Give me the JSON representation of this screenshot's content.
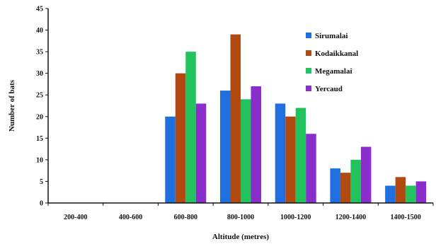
{
  "chart_data": {
    "type": "bar",
    "title": "",
    "xlabel": "Altitude (metres)",
    "ylabel": "Number of bats",
    "ylim": [
      0,
      45
    ],
    "yticks": [
      0,
      5,
      10,
      15,
      20,
      25,
      30,
      35,
      40,
      45
    ],
    "categories": [
      "200-400",
      "400-600",
      "600-800",
      "800-1000",
      "1000-1200",
      "1200-1400",
      "1400-1500"
    ],
    "series": [
      {
        "name": "Sirumalai",
        "color": "#1f6fe0",
        "values": [
          0,
          0,
          20,
          26,
          23,
          8,
          4
        ]
      },
      {
        "name": "Kodaikkanal",
        "color": "#b04a10",
        "values": [
          0,
          0,
          30,
          39,
          20,
          7,
          6
        ]
      },
      {
        "name": "Megamalai",
        "color": "#22c35e",
        "values": [
          0,
          0,
          35,
          24,
          22,
          10,
          4
        ]
      },
      {
        "name": "Yercaud",
        "color": "#8a2ecb",
        "values": [
          0,
          0,
          23,
          27,
          16,
          13,
          5
        ]
      }
    ],
    "legend_position": "top-right",
    "grid": false
  }
}
